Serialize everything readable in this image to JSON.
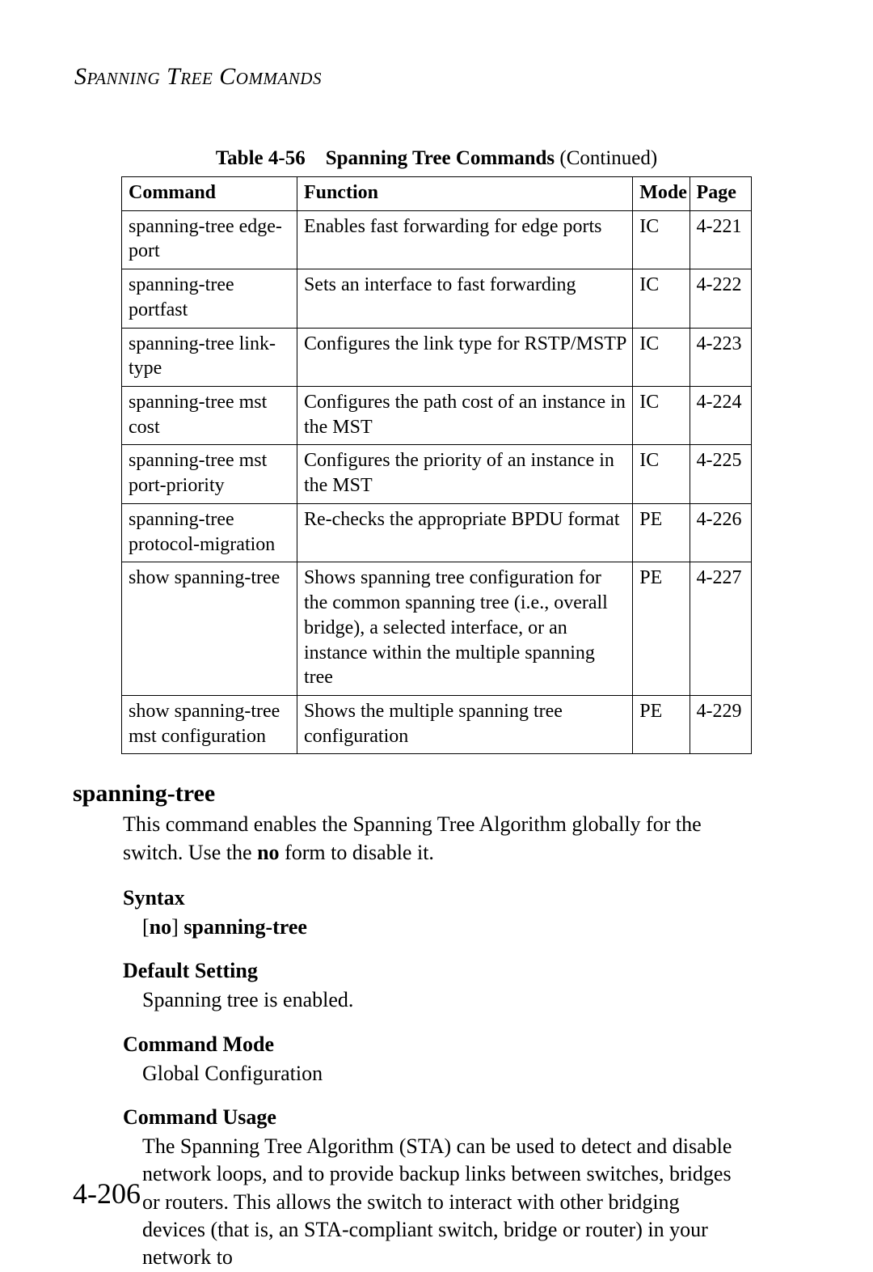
{
  "running_head": "Spanning Tree Commands",
  "table": {
    "caption_prefix": "Table 4-56",
    "caption_title": "Spanning Tree Commands",
    "caption_suffix": "(Continued)",
    "headers": {
      "command": "Command",
      "function": "Function",
      "mode": "Mode",
      "page": "Page"
    },
    "rows": [
      {
        "command": "spanning-tree edge-port",
        "function": "Enables fast forwarding for edge ports",
        "mode": "IC",
        "page": "4-221"
      },
      {
        "command": "spanning-tree portfast",
        "function": "Sets an interface to fast forwarding",
        "mode": "IC",
        "page": "4-222"
      },
      {
        "command": "spanning-tree link-type",
        "function": "Configures the link type for RSTP/MSTP",
        "mode": "IC",
        "page": "4-223"
      },
      {
        "command": "spanning-tree mst cost",
        "function": "Configures the path cost of an instance in the MST",
        "mode": "IC",
        "page": "4-224"
      },
      {
        "command": "spanning-tree mst port-priority",
        "function": "Configures the priority of an instance in the MST",
        "mode": "IC",
        "page": "4-225"
      },
      {
        "command": "spanning-tree protocol-migration",
        "function": "Re-checks the appropriate BPDU format",
        "mode": "PE",
        "page": "4-226"
      },
      {
        "command": "show spanning-tree",
        "function": "Shows spanning tree configuration for the common spanning tree (i.e., overall bridge), a selected interface, or an instance within the multiple spanning tree",
        "mode": "PE",
        "page": "4-227"
      },
      {
        "command": "show spanning-tree mst configuration",
        "function": "Shows the multiple spanning tree configuration",
        "mode": "PE",
        "page": "4-229"
      }
    ]
  },
  "section": {
    "title": "spanning-tree",
    "intro_pre": "This command enables the Spanning Tree Algorithm globally for the switch. Use the ",
    "intro_bold": "no",
    "intro_post": " form to disable it.",
    "syntax_head": "Syntax",
    "syntax_body_pre": "[",
    "syntax_body_bold1": "no",
    "syntax_body_mid": "] ",
    "syntax_body_bold2": "spanning-tree",
    "default_head": "Default Setting",
    "default_body": "Spanning tree is enabled.",
    "mode_head": "Command Mode",
    "mode_body": "Global Configuration",
    "usage_head": "Command Usage",
    "usage_body": "The Spanning Tree Algorithm (STA) can be used to detect and disable network loops, and to provide backup links between switches, bridges or routers. This allows the switch to interact with other bridging devices (that is, an STA-compliant switch, bridge or router) in your network to"
  },
  "page_number": "4-206"
}
